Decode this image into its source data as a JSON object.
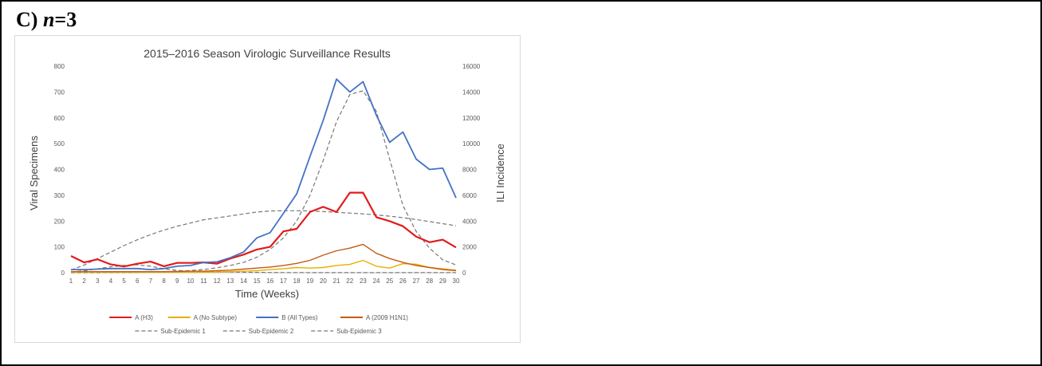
{
  "panel": {
    "prefix": "C) ",
    "n_text": "n",
    "suffix": "=3"
  },
  "chart_data": {
    "type": "line",
    "title": "2015–2016 Season Virologic Surveillance Results",
    "xlabel": "Time (Weeks)",
    "ylabel": "Viral Specimens",
    "ylabel_right": "ILI Incidence",
    "x": [
      1,
      2,
      3,
      4,
      5,
      6,
      7,
      8,
      9,
      10,
      11,
      12,
      13,
      14,
      15,
      16,
      17,
      18,
      19,
      20,
      21,
      22,
      23,
      24,
      25,
      26,
      27,
      28,
      29,
      30
    ],
    "xlim": [
      1,
      30
    ],
    "ylim": [
      0,
      800
    ],
    "ylim_right": [
      0,
      16000
    ],
    "yticks": [
      0,
      100,
      200,
      300,
      400,
      500,
      600,
      700,
      800
    ],
    "yticks_right": [
      0,
      2000,
      4000,
      6000,
      8000,
      10000,
      12000,
      14000,
      16000
    ],
    "grid": false,
    "legend_position": "bottom",
    "series": [
      {
        "name": "A (H3)",
        "axis": "left",
        "color": "#e31a1c",
        "dash": false,
        "width": 2.2,
        "values": [
          65,
          40,
          52,
          32,
          24,
          35,
          43,
          25,
          38,
          38,
          40,
          35,
          55,
          70,
          90,
          100,
          160,
          170,
          235,
          255,
          235,
          310,
          310,
          215,
          200,
          180,
          140,
          118,
          128,
          98
        ]
      },
      {
        "name": "A (No Subtype)",
        "axis": "left",
        "color": "#e6b000",
        "dash": false,
        "width": 1.4,
        "values": [
          2,
          2,
          2,
          2,
          2,
          2,
          2,
          2,
          2,
          2,
          2,
          3,
          4,
          6,
          8,
          12,
          15,
          20,
          18,
          20,
          28,
          32,
          48,
          25,
          18,
          35,
          33,
          20,
          15,
          10
        ]
      },
      {
        "name": "B (All Types)",
        "axis": "left",
        "color": "#4472c4",
        "dash": false,
        "width": 1.8,
        "values": [
          12,
          12,
          14,
          16,
          16,
          16,
          12,
          16,
          25,
          28,
          40,
          42,
          58,
          80,
          135,
          155,
          230,
          305,
          450,
          590,
          750,
          700,
          740,
          610,
          505,
          545,
          440,
          400,
          405,
          290
        ]
      },
      {
        "name": "A (2009 H1N1)",
        "axis": "left",
        "color": "#c55a11",
        "dash": false,
        "width": 1.4,
        "values": [
          4,
          4,
          4,
          4,
          4,
          4,
          4,
          4,
          5,
          6,
          6,
          8,
          10,
          14,
          18,
          22,
          28,
          36,
          48,
          68,
          85,
          95,
          110,
          75,
          55,
          40,
          28,
          20,
          12,
          8
        ]
      },
      {
        "name": "Sub-Epidemic 1",
        "axis": "right",
        "color": "#777777",
        "dash": true,
        "width": 1.2,
        "values": [
          60,
          140,
          300,
          460,
          560,
          620,
          500,
          300,
          180,
          120,
          100,
          100,
          60,
          40,
          30,
          20,
          10,
          5,
          5,
          5,
          5,
          5,
          5,
          5,
          5,
          5,
          5,
          5,
          5,
          5
        ]
      },
      {
        "name": "Sub-Epidemic 2",
        "axis": "right",
        "color": "#777777",
        "dash": true,
        "width": 1.2,
        "values": [
          200,
          600,
          1100,
          1600,
          2100,
          2550,
          2950,
          3300,
          3600,
          3850,
          4100,
          4250,
          4400,
          4550,
          4700,
          4780,
          4800,
          4800,
          4780,
          4740,
          4680,
          4620,
          4560,
          4480,
          4380,
          4260,
          4120,
          3960,
          3800,
          3640
        ]
      },
      {
        "name": "Sub-Epidemic 3",
        "axis": "right",
        "color": "#777777",
        "dash": true,
        "width": 1.2,
        "values": [
          0,
          0,
          0,
          5,
          10,
          20,
          40,
          70,
          110,
          170,
          250,
          380,
          560,
          800,
          1200,
          1800,
          2700,
          4000,
          6000,
          8700,
          11700,
          13800,
          14100,
          12500,
          8800,
          5200,
          3200,
          1900,
          1000,
          600
        ]
      }
    ]
  }
}
